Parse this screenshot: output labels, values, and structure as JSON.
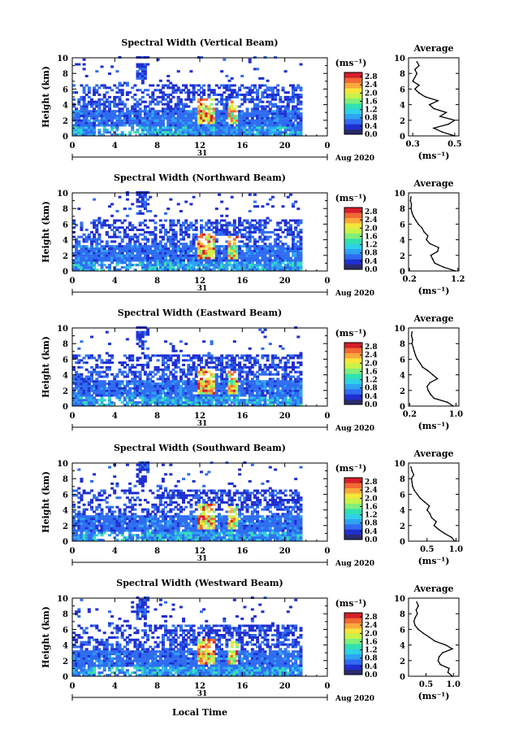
{
  "figure": {
    "xlabel": "Local Time",
    "date_label": "Aug 2020",
    "day_label": "31",
    "unit_label": "(ms⁻¹)",
    "avg_title": "Average",
    "height_label": "Height (km)"
  },
  "colors": {
    "colormap": [
      "#2a2a6e",
      "#1f2fd0",
      "#2f6cf0",
      "#2ea4f2",
      "#2ed1e6",
      "#33e0b0",
      "#7ff07a",
      "#c9f24a",
      "#f5e63a",
      "#f9a93a",
      "#f06a35",
      "#d61f2a"
    ],
    "axis": "#000000"
  },
  "chart_data": [
    {
      "type": "heatmap",
      "title": "Spectral Width (Vertical Beam)",
      "xlabel": "",
      "ylabel": "Height (km)",
      "x_ticks": [
        "0",
        "4",
        "8",
        "12",
        "16",
        "20",
        "0"
      ],
      "xlim": [
        0,
        24
      ],
      "y_ticks": [
        "0",
        "2",
        "4",
        "6",
        "8",
        "10"
      ],
      "ylim": [
        0,
        10
      ],
      "colorbar": {
        "ticks": [
          "0.0",
          "0.4",
          "0.8",
          "1.2",
          "1.6",
          "2.0",
          "2.4",
          "2.8"
        ],
        "range": [
          0,
          3.0
        ],
        "unit": "(ms⁻¹)"
      },
      "average_profile": {
        "x_ticks": [
          "0.3",
          "0.5"
        ],
        "xlim": [
          0.28,
          0.52
        ],
        "ylim": [
          0,
          10
        ],
        "y_ticks": [
          "0",
          "2",
          "4",
          "6",
          "8",
          "10"
        ],
        "xlabel": "(ms⁻¹)",
        "height": [
          0,
          0.5,
          1,
          1.5,
          2,
          2.5,
          3,
          3.5,
          4,
          4.5,
          5,
          5.5,
          6,
          6.5,
          7,
          7.5,
          8,
          8.5,
          9,
          9.5
        ],
        "value": [
          0.5,
          0.44,
          0.4,
          0.47,
          0.5,
          0.43,
          0.46,
          0.4,
          0.38,
          0.42,
          0.36,
          0.33,
          0.31,
          0.33,
          0.3,
          0.31,
          0.32,
          0.31,
          0.33,
          0.32
        ]
      }
    },
    {
      "type": "heatmap",
      "title": "Spectral Width (Northward Beam)",
      "xlabel": "",
      "ylabel": "Height (km)",
      "x_ticks": [
        "0",
        "4",
        "8",
        "12",
        "16",
        "20",
        "0"
      ],
      "xlim": [
        0,
        24
      ],
      "y_ticks": [
        "0",
        "2",
        "4",
        "6",
        "8",
        "10"
      ],
      "ylim": [
        0,
        10
      ],
      "colorbar": {
        "ticks": [
          "0.0",
          "0.4",
          "0.8",
          "1.2",
          "1.6",
          "2.0",
          "2.4",
          "2.8"
        ],
        "range": [
          0,
          3.0
        ],
        "unit": "(ms⁻¹)"
      },
      "average_profile": {
        "x_ticks": [
          "0.2",
          "1.2"
        ],
        "xlim": [
          0.18,
          1.22
        ],
        "ylim": [
          0,
          10
        ],
        "y_ticks": [
          "0",
          "2",
          "4",
          "6",
          "8",
          "10"
        ],
        "xlabel": "(ms⁻¹)",
        "height": [
          0,
          0.5,
          1,
          1.5,
          2,
          2.5,
          3,
          3.5,
          4,
          4.5,
          5,
          5.5,
          6,
          6.5,
          7,
          7.5,
          8,
          8.5,
          9,
          9.5
        ],
        "value": [
          1.15,
          0.9,
          0.72,
          0.68,
          0.64,
          0.78,
          0.8,
          0.62,
          0.55,
          0.58,
          0.5,
          0.46,
          0.38,
          0.33,
          0.28,
          0.25,
          0.23,
          0.24,
          0.22,
          0.23
        ]
      }
    },
    {
      "type": "heatmap",
      "title": "Spectral Width (Eastward Beam)",
      "xlabel": "",
      "ylabel": "Height (km)",
      "x_ticks": [
        "0",
        "4",
        "8",
        "12",
        "16",
        "20",
        "0"
      ],
      "xlim": [
        0,
        24
      ],
      "y_ticks": [
        "0",
        "2",
        "4",
        "6",
        "8",
        "10"
      ],
      "ylim": [
        0,
        10
      ],
      "colorbar": {
        "ticks": [
          "0.0",
          "0.4",
          "0.8",
          "1.2",
          "1.6",
          "2.0",
          "2.4",
          "2.8"
        ],
        "range": [
          0,
          3.0
        ],
        "unit": "(ms⁻¹)"
      },
      "average_profile": {
        "x_ticks": [
          "0.2",
          "1.0"
        ],
        "xlim": [
          0.18,
          1.05
        ],
        "ylim": [
          0,
          10
        ],
        "y_ticks": [
          "0",
          "2",
          "4",
          "6",
          "8",
          "10"
        ],
        "xlabel": "(ms⁻¹)",
        "height": [
          0,
          0.5,
          1,
          1.5,
          2,
          2.5,
          3,
          3.5,
          4,
          4.5,
          5,
          5.5,
          6,
          6.5,
          7,
          7.5,
          8,
          8.5,
          9,
          9.5
        ],
        "value": [
          0.95,
          0.85,
          0.62,
          0.56,
          0.52,
          0.5,
          0.55,
          0.68,
          0.6,
          0.52,
          0.42,
          0.38,
          0.33,
          0.3,
          0.28,
          0.26,
          0.24,
          0.25,
          0.23,
          0.24
        ]
      }
    },
    {
      "type": "heatmap",
      "title": "Spectral Width (Southward Beam)",
      "xlabel": "",
      "ylabel": "Height (km)",
      "x_ticks": [
        "0",
        "4",
        "8",
        "12",
        "16",
        "20",
        "0"
      ],
      "xlim": [
        0,
        24
      ],
      "y_ticks": [
        "0",
        "2",
        "4",
        "6",
        "8",
        "10"
      ],
      "ylim": [
        0,
        10
      ],
      "colorbar": {
        "ticks": [
          "0.0",
          "0.4",
          "0.8",
          "1.2",
          "1.6",
          "2.0",
          "2.4",
          "2.8"
        ],
        "range": [
          0,
          3.0
        ],
        "unit": "(ms⁻¹)"
      },
      "average_profile": {
        "x_ticks": [
          "0.5",
          "1.0"
        ],
        "xlim": [
          0.18,
          1.05
        ],
        "ylim": [
          0,
          10
        ],
        "y_ticks": [
          "0",
          "2",
          "4",
          "6",
          "8",
          "10"
        ],
        "xlabel": "(ms⁻¹)",
        "height": [
          0,
          0.5,
          1,
          1.5,
          2,
          2.5,
          3,
          3.5,
          4,
          4.5,
          5,
          5.5,
          6,
          6.5,
          7,
          7.5,
          8,
          8.5,
          9,
          9.5
        ],
        "value": [
          0.98,
          0.92,
          0.8,
          0.7,
          0.62,
          0.66,
          0.58,
          0.55,
          0.5,
          0.54,
          0.46,
          0.38,
          0.33,
          0.28,
          0.25,
          0.24,
          0.23,
          0.27,
          0.24,
          0.22
        ]
      }
    },
    {
      "type": "heatmap",
      "title": "Spectral Width (Westward Beam)",
      "xlabel": "Local Time",
      "ylabel": "Height (km)",
      "x_ticks": [
        "0",
        "4",
        "8",
        "12",
        "16",
        "20",
        "0"
      ],
      "xlim": [
        0,
        24
      ],
      "y_ticks": [
        "0",
        "2",
        "4",
        "6",
        "8",
        "10"
      ],
      "ylim": [
        0,
        10
      ],
      "colorbar": {
        "ticks": [
          "0.0",
          "0.4",
          "0.8",
          "1.2",
          "1.6",
          "2.0",
          "2.4",
          "2.8"
        ],
        "range": [
          0,
          3.0
        ],
        "unit": "(ms⁻¹)"
      },
      "average_profile": {
        "x_ticks": [
          "0.5",
          "1.0"
        ],
        "xlim": [
          0.18,
          1.1
        ],
        "ylim": [
          0,
          10
        ],
        "y_ticks": [
          "0",
          "2",
          "4",
          "6",
          "8",
          "10"
        ],
        "xlabel": "(ms⁻¹)",
        "height": [
          0,
          0.5,
          1,
          1.5,
          2,
          2.5,
          3,
          3.5,
          4,
          4.5,
          5,
          5.5,
          6,
          6.5,
          7,
          7.5,
          8,
          8.5,
          9,
          9.5
        ],
        "value": [
          0.98,
          0.9,
          0.92,
          0.76,
          0.72,
          0.74,
          0.8,
          0.98,
          0.86,
          0.66,
          0.56,
          0.45,
          0.36,
          0.3,
          0.28,
          0.3,
          0.34,
          0.32,
          0.36,
          0.33
        ]
      }
    }
  ]
}
